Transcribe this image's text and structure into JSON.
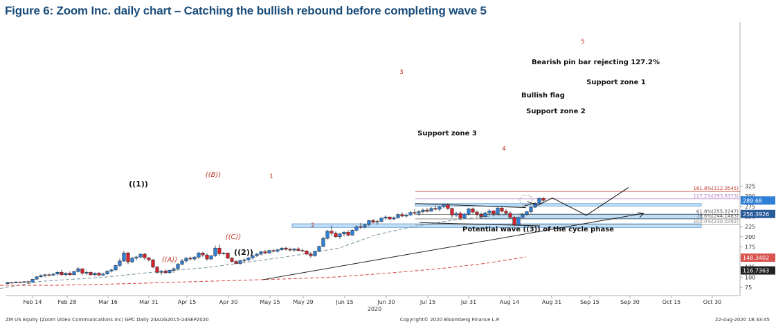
{
  "title": "Figure 6: Zoom Inc. daily chart – Catching the bullish rebound before completing wave 5",
  "chart_data": {
    "type": "candlestick",
    "y_ticks": [
      75,
      100,
      125,
      150,
      175,
      200,
      225,
      250,
      275,
      300,
      325
    ],
    "x_ticks": [
      "Feb 14",
      "Feb 28",
      "Mar 16",
      "Mar 31",
      "Apr 15",
      "Apr 30",
      "May 15",
      "May 29",
      "Jun 15",
      "Jun 30",
      "Jul 15",
      "Jul 31",
      "Aug 14",
      "Aug 31",
      "Sep 15",
      "Sep 30",
      "Oct 15",
      "Oct 30"
    ],
    "year_label": "2020",
    "price_tags": [
      {
        "value": "289.68",
        "price": 289.68,
        "color": "#2f7fd6"
      },
      {
        "value": "256.3926",
        "price": 256.39,
        "color": "#2a5c9a"
      },
      {
        "value": "148.3402",
        "price": 148.34,
        "color": "#d9534f"
      },
      {
        "value": "116.7363",
        "price": 116.74,
        "color": "#222222"
      }
    ],
    "fib_levels": [
      {
        "label": "161.8%(312.0545)",
        "price": 312.05,
        "color": "#c0392b"
      },
      {
        "label": "127.2%(293.8373)",
        "price": 293.84,
        "color": "#b57fc9"
      },
      {
        "label": "61.8%(255.2247)",
        "price": 255.22,
        "color": "#555555"
      },
      {
        "label": "78.6%(244.1483)",
        "price": 244.15,
        "color": "#555555"
      },
      {
        "label": "100.0%(230.0392)",
        "price": 230.04,
        "color": "#888888"
      }
    ],
    "zones": [
      {
        "label": "Support zone 1",
        "low": 276,
        "high": 282
      },
      {
        "label": "Support zone 2",
        "low": 245,
        "high": 256
      },
      {
        "label": "Support zone 3",
        "low": 223,
        "high": 232
      }
    ],
    "annotations": [
      {
        "text": "Bearish pin bar rejecting 127.2%"
      },
      {
        "text": "Bullish flag"
      },
      {
        "text": "Potential wave ((3)) of the cycle phase"
      }
    ],
    "wave_labels_red": [
      "5",
      "3",
      "4",
      "1",
      "2"
    ],
    "wave_labels_red_italic": [
      "((B))",
      "((C))",
      "((A))"
    ],
    "wave_labels_black": [
      "((1))",
      "((2))"
    ],
    "ohlc": [
      [
        84,
        89,
        83,
        87
      ],
      [
        87,
        88,
        85,
        86
      ],
      [
        86,
        90,
        85,
        88
      ],
      [
        88,
        89,
        86,
        87
      ],
      [
        87,
        90,
        86,
        89
      ],
      [
        89,
        91,
        86,
        88
      ],
      [
        88,
        96,
        87,
        95
      ],
      [
        95,
        103,
        94,
        101
      ],
      [
        101,
        107,
        99,
        104
      ],
      [
        104,
        108,
        100,
        106
      ],
      [
        106,
        109,
        103,
        105
      ],
      [
        105,
        110,
        103,
        108
      ],
      [
        108,
        115,
        104,
        112
      ],
      [
        112,
        118,
        104,
        106
      ],
      [
        106,
        112,
        103,
        110
      ],
      [
        110,
        114,
        104,
        106
      ],
      [
        106,
        116,
        105,
        114
      ],
      [
        114,
        125,
        112,
        121
      ],
      [
        121,
        122,
        106,
        110
      ],
      [
        110,
        116,
        105,
        112
      ],
      [
        112,
        114,
        104,
        106
      ],
      [
        106,
        112,
        103,
        110
      ],
      [
        110,
        113,
        103,
        105
      ],
      [
        105,
        111,
        103,
        108
      ],
      [
        108,
        117,
        106,
        115
      ],
      [
        115,
        121,
        112,
        118
      ],
      [
        118,
        131,
        116,
        129
      ],
      [
        129,
        146,
        125,
        140
      ],
      [
        140,
        165,
        138,
        160
      ],
      [
        160,
        163,
        132,
        138
      ],
      [
        138,
        150,
        135,
        147
      ],
      [
        147,
        153,
        142,
        150
      ],
      [
        150,
        158,
        146,
        157
      ],
      [
        157,
        160,
        143,
        148
      ],
      [
        148,
        150,
        139,
        143
      ],
      [
        143,
        145,
        122,
        125
      ],
      [
        125,
        128,
        108,
        112
      ],
      [
        112,
        118,
        106,
        115
      ],
      [
        115,
        120,
        108,
        111
      ],
      [
        111,
        119,
        109,
        117
      ],
      [
        117,
        124,
        111,
        121
      ],
      [
        121,
        135,
        119,
        132
      ],
      [
        132,
        145,
        130,
        140
      ],
      [
        140,
        150,
        137,
        147
      ],
      [
        147,
        151,
        141,
        145
      ],
      [
        145,
        152,
        140,
        150
      ],
      [
        150,
        163,
        145,
        160
      ],
      [
        160,
        163,
        150,
        155
      ],
      [
        155,
        159,
        141,
        145
      ],
      [
        145,
        155,
        143,
        153
      ],
      [
        153,
        178,
        150,
        172
      ],
      [
        172,
        181,
        153,
        158
      ],
      [
        158,
        162,
        155,
        160
      ],
      [
        160,
        161,
        145,
        147
      ],
      [
        147,
        150,
        136,
        139
      ],
      [
        139,
        142,
        132,
        134
      ],
      [
        134,
        143,
        131,
        141
      ],
      [
        141,
        146,
        136,
        143
      ],
      [
        143,
        150,
        140,
        148
      ],
      [
        148,
        155,
        144,
        153
      ],
      [
        153,
        160,
        150,
        157
      ],
      [
        157,
        165,
        154,
        163
      ],
      [
        163,
        167,
        157,
        160
      ],
      [
        160,
        168,
        157,
        166
      ],
      [
        166,
        170,
        161,
        164
      ],
      [
        164,
        170,
        161,
        168
      ],
      [
        168,
        174,
        165,
        172
      ],
      [
        172,
        176,
        166,
        169
      ],
      [
        169,
        173,
        164,
        167
      ],
      [
        167,
        172,
        163,
        170
      ],
      [
        170,
        174,
        164,
        166
      ],
      [
        166,
        171,
        163,
        165
      ],
      [
        165,
        167,
        155,
        157
      ],
      [
        157,
        161,
        148,
        153
      ],
      [
        153,
        166,
        151,
        164
      ],
      [
        164,
        178,
        162,
        176
      ],
      [
        176,
        200,
        175,
        196
      ],
      [
        196,
        217,
        194,
        214
      ],
      [
        214,
        228,
        203,
        209
      ],
      [
        209,
        213,
        197,
        200
      ],
      [
        200,
        210,
        195,
        207
      ],
      [
        207,
        214,
        201,
        211
      ],
      [
        211,
        216,
        201,
        204
      ],
      [
        204,
        218,
        202,
        216
      ],
      [
        216,
        228,
        213,
        225
      ],
      [
        225,
        234,
        219,
        224
      ],
      [
        224,
        232,
        220,
        230
      ],
      [
        230,
        242,
        226,
        240
      ],
      [
        240,
        244,
        233,
        236
      ],
      [
        236,
        242,
        230,
        238
      ],
      [
        238,
        248,
        236,
        246
      ],
      [
        246,
        253,
        241,
        249
      ],
      [
        249,
        250,
        241,
        244
      ],
      [
        244,
        250,
        241,
        247
      ],
      [
        247,
        258,
        245,
        255
      ],
      [
        255,
        260,
        249,
        251
      ],
      [
        251,
        257,
        247,
        254
      ],
      [
        254,
        264,
        252,
        260
      ],
      [
        260,
        268,
        255,
        258
      ],
      [
        258,
        266,
        252,
        262
      ],
      [
        262,
        270,
        258,
        266
      ],
      [
        266,
        271,
        260,
        263
      ],
      [
        263,
        273,
        262,
        270
      ],
      [
        270,
        277,
        265,
        268
      ],
      [
        268,
        276,
        263,
        274
      ],
      [
        274,
        282,
        270,
        279
      ],
      [
        279,
        283,
        266,
        270
      ],
      [
        270,
        272,
        247,
        254
      ],
      [
        254,
        262,
        249,
        258
      ],
      [
        258,
        263,
        242,
        246
      ],
      [
        246,
        259,
        244,
        256
      ],
      [
        256,
        272,
        252,
        269
      ],
      [
        269,
        272,
        257,
        261
      ],
      [
        261,
        265,
        250,
        255
      ],
      [
        255,
        260,
        245,
        250
      ],
      [
        250,
        262,
        248,
        259
      ],
      [
        259,
        268,
        254,
        264
      ],
      [
        264,
        266,
        252,
        256
      ],
      [
        256,
        274,
        254,
        271
      ],
      [
        271,
        275,
        260,
        263
      ],
      [
        263,
        268,
        254,
        258
      ],
      [
        258,
        263,
        244,
        248
      ],
      [
        248,
        251,
        226,
        229
      ],
      [
        229,
        250,
        227,
        248
      ],
      [
        248,
        257,
        246,
        255
      ],
      [
        255,
        264,
        252,
        262
      ],
      [
        262,
        276,
        258,
        273
      ],
      [
        273,
        285,
        271,
        283
      ],
      [
        283,
        297,
        281,
        295
      ],
      [
        295,
        298,
        284,
        290
      ]
    ],
    "ma_fast": [
      [
        0,
        72
      ],
      [
        60,
        90
      ],
      [
        150,
        100
      ],
      [
        230,
        114
      ],
      [
        300,
        124
      ],
      [
        360,
        138
      ],
      [
        420,
        152
      ],
      [
        490,
        172
      ],
      [
        540,
        203
      ],
      [
        590,
        223
      ],
      [
        650,
        240
      ],
      [
        700,
        250
      ],
      [
        760,
        258
      ]
    ],
    "ma_slow": [
      [
        0,
        80
      ],
      [
        80,
        80
      ],
      [
        160,
        83
      ],
      [
        240,
        87
      ],
      [
        320,
        91
      ],
      [
        400,
        95
      ],
      [
        480,
        100
      ],
      [
        560,
        110
      ],
      [
        640,
        122
      ],
      [
        700,
        134
      ],
      [
        760,
        150
      ]
    ],
    "trend_lines": [
      {
        "from": [
          380,
          94
        ],
        "to": [
          930,
          258
        ]
      },
      {
        "from": [
          600,
          282
        ],
        "to": [
          760,
          272
        ]
      },
      {
        "from": [
          606,
          235
        ],
        "to": [
          780,
          227
        ]
      },
      {
        "from": [
          755,
          275
        ],
        "to": [
          772,
          283
        ]
      }
    ],
    "projection": [
      [
        762,
        287
      ],
      [
        777,
        278
      ],
      [
        798,
        296
      ],
      [
        847,
        253
      ],
      [
        908,
        322
      ]
    ],
    "footer_left": "ZM US Equity (Zoom Video Communications Inc) GPC  Daily 24AUG2015-24SEP2020",
    "footer_center": "Copyright© 2020 Bloomberg Finance L.P.",
    "footer_right": "22-Aug-2020 18:33:45"
  }
}
